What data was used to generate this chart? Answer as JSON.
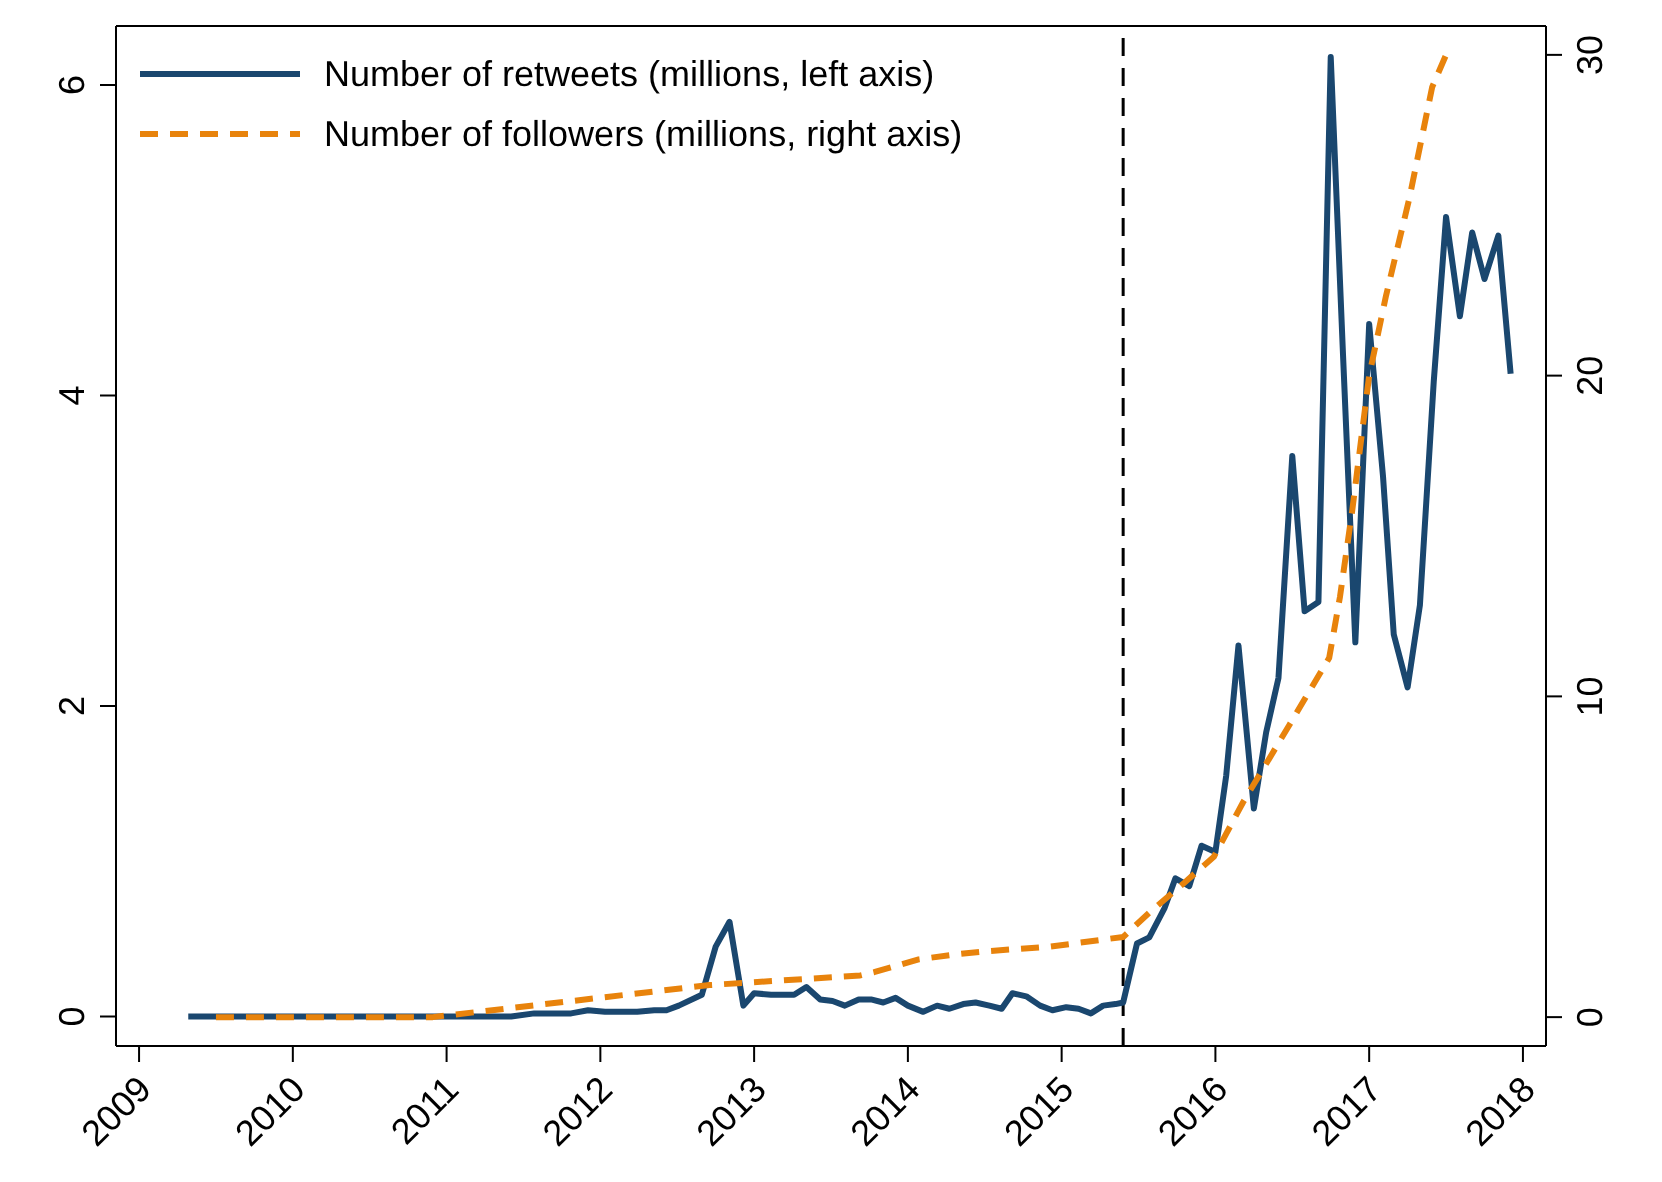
{
  "chart_data": {
    "type": "line",
    "xlim": [
      2008.85,
      2018.15
    ],
    "xticks": [
      2009,
      2010,
      2011,
      2012,
      2013,
      2014,
      2015,
      2016,
      2017,
      2018
    ],
    "ylim": [
      -0.19,
      6.38
    ],
    "yticks": [
      0,
      2,
      4,
      6
    ],
    "y2lim": [
      -0.9,
      30.9
    ],
    "y2ticks": [
      0,
      10,
      20,
      30
    ],
    "legend": "top left",
    "ref_lines": [
      {
        "axis": "x",
        "value": 2015.4,
        "color": "#000000",
        "line_style": "dashed"
      }
    ],
    "series": [
      {
        "name": "Number of retweets (millions, left axis)",
        "color": "#1a476f",
        "line_style": "solid",
        "axis": "y",
        "x": [
          2009.32,
          2011.42,
          2011.57,
          2011.7,
          2011.81,
          2011.92,
          2012.03,
          2012.24,
          2012.35,
          2012.43,
          2012.51,
          2012.66,
          2012.75,
          2012.84,
          2012.93,
          2013.0,
          2013.11,
          2013.26,
          2013.34,
          2013.43,
          2013.51,
          2013.59,
          2013.68,
          2013.76,
          2013.84,
          2013.92,
          2014.0,
          2014.1,
          2014.19,
          2014.27,
          2014.36,
          2014.44,
          2014.53,
          2014.61,
          2014.68,
          2014.77,
          2014.86,
          2014.94,
          2015.03,
          2015.11,
          2015.19,
          2015.27,
          2015.35,
          2015.4,
          2015.49,
          2015.57,
          2015.67,
          2015.74,
          2015.83,
          2015.91,
          2016.0,
          2016.07,
          2016.15,
          2016.25,
          2016.33,
          2016.41,
          2016.5,
          2016.58,
          2016.67,
          2016.75,
          2016.83,
          2016.91,
          2017.0,
          2017.09,
          2017.16,
          2017.25,
          2017.33,
          2017.42,
          2017.5,
          2017.59,
          2017.67,
          2017.75,
          2017.84,
          2017.92
        ],
        "values": [
          0,
          0,
          0.02,
          0.02,
          0.02,
          0.04,
          0.03,
          0.03,
          0.04,
          0.04,
          0.07,
          0.14,
          0.45,
          0.61,
          0.07,
          0.15,
          0.14,
          0.14,
          0.19,
          0.11,
          0.1,
          0.07,
          0.11,
          0.11,
          0.09,
          0.12,
          0.07,
          0.03,
          0.07,
          0.05,
          0.08,
          0.09,
          0.07,
          0.05,
          0.15,
          0.13,
          0.07,
          0.04,
          0.06,
          0.05,
          0.02,
          0.07,
          0.08,
          0.09,
          0.47,
          0.51,
          0.7,
          0.89,
          0.84,
          1.1,
          1.06,
          1.55,
          2.39,
          1.34,
          1.83,
          2.18,
          3.61,
          2.61,
          2.67,
          6.18,
          4.26,
          2.41,
          4.46,
          3.48,
          2.46,
          2.12,
          2.65,
          4.09,
          5.15,
          4.51,
          5.05,
          4.75,
          5.03,
          4.14
        ]
      },
      {
        "name": "Number of followers (millions, right axis)",
        "color": "#e8830c",
        "line_style": "dashed",
        "axis": "y2",
        "x": [
          2009.5,
          2010.91,
          2012.71,
          2013.69,
          2013.78,
          2014.07,
          2014.3,
          2014.5,
          2014.93,
          2015.4,
          2015.58,
          2015.8,
          2015.99,
          2016.18,
          2016.33,
          2016.48,
          2016.74,
          2016.81,
          2016.89,
          2017.0,
          2017.11,
          2017.26,
          2017.41,
          2017.5
        ],
        "values": [
          0,
          0,
          1.0,
          1.3,
          1.4,
          1.8,
          1.95,
          2.05,
          2.2,
          2.5,
          3.3,
          4.2,
          5.0,
          6.7,
          7.9,
          9.1,
          11.2,
          13.1,
          15.8,
          20.0,
          22.5,
          25.5,
          29.0,
          30.0
        ]
      }
    ]
  }
}
